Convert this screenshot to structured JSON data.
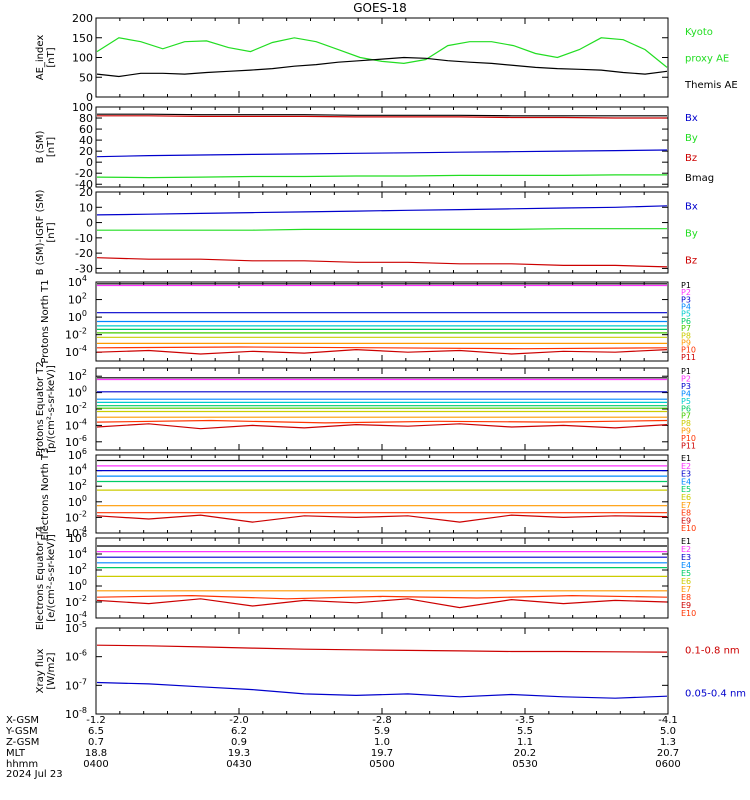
{
  "title": "GOES-18",
  "colors": {
    "black": "#000000",
    "green": "#22dd22",
    "blue": "#0000cc",
    "red": "#cc0000",
    "p": [
      "#000000",
      "#ff33ff",
      "#0000cc",
      "#0088ff",
      "#00cccc",
      "#00cc66",
      "#44cc00",
      "#cccc00",
      "#ff9900",
      "#ff3300",
      "#cc0000"
    ]
  },
  "chart_data": [
    {
      "type": "line",
      "ylabel": "AE_index [nT]",
      "ylim": [
        0,
        200
      ],
      "yticks": [
        "0",
        "50",
        "100",
        "150",
        "200"
      ],
      "legend": [
        "Kyoto",
        "proxy AE",
        "Themis AE"
      ],
      "series": [
        {
          "name": "Kyoto proxy AE",
          "color": "green",
          "values": [
            115,
            150,
            140,
            122,
            140,
            142,
            125,
            115,
            138,
            150,
            140,
            120,
            100,
            90,
            85,
            95,
            130,
            140,
            140,
            130,
            110,
            100,
            120,
            150,
            145,
            120,
            75
          ]
        },
        {
          "name": "Themis AE",
          "color": "black",
          "values": [
            58,
            52,
            60,
            60,
            58,
            62,
            65,
            68,
            72,
            78,
            82,
            88,
            92,
            96,
            100,
            98,
            92,
            88,
            85,
            80,
            75,
            72,
            70,
            68,
            62,
            58,
            65
          ]
        }
      ]
    },
    {
      "type": "line",
      "ylabel": "B (SM) [nT]",
      "ylim": [
        -45,
        100
      ],
      "yticks": [
        "-40",
        "-20",
        "0",
        "20",
        "40",
        "60",
        "80",
        "100"
      ],
      "legend": [
        "Bx",
        "By",
        "Bz",
        "Bmag"
      ],
      "series": [
        {
          "name": "Bx",
          "color": "blue",
          "values": [
            10,
            12,
            13,
            14,
            15,
            16,
            17,
            18,
            19,
            20,
            21,
            22
          ]
        },
        {
          "name": "By",
          "color": "green",
          "values": [
            -27,
            -28,
            -27,
            -26,
            -26,
            -25,
            -25,
            -24,
            -24,
            -24,
            -23,
            -23
          ]
        },
        {
          "name": "Bz",
          "color": "red",
          "values": [
            84,
            84,
            83,
            83,
            83,
            82,
            82,
            82,
            81,
            81,
            80,
            80
          ]
        },
        {
          "name": "Bmag",
          "color": "black",
          "values": [
            87,
            87,
            86,
            86,
            86,
            85,
            85,
            85,
            84,
            84,
            84,
            84
          ]
        }
      ]
    },
    {
      "type": "line",
      "ylabel": "B (SM)-IGRF (SM) [nT]",
      "ylim": [
        -33,
        20
      ],
      "yticks": [
        "-30",
        "-20",
        "-10",
        "0",
        "10",
        "20"
      ],
      "legend": [
        "Bx",
        "By",
        "Bz"
      ],
      "series": [
        {
          "name": "Bx",
          "color": "blue",
          "values": [
            5,
            5.5,
            6,
            6.5,
            7,
            7.5,
            8,
            8.5,
            9,
            9.5,
            10,
            11
          ]
        },
        {
          "name": "By",
          "color": "green",
          "values": [
            -5,
            -5,
            -5,
            -5,
            -4.5,
            -4.5,
            -4.5,
            -4.5,
            -4.5,
            -4,
            -4,
            -4
          ]
        },
        {
          "name": "Bz",
          "color": "red",
          "values": [
            -23,
            -24,
            -24,
            -25,
            -25,
            -26,
            -26,
            -27,
            -27,
            -28,
            -28,
            -29
          ]
        }
      ]
    },
    {
      "type": "line",
      "ylabel": "Protons North T1",
      "ylim": [
        -5,
        4
      ],
      "log": true,
      "yticks": [
        "10^-4",
        "10^-2",
        "10^0",
        "10^2",
        "10^4"
      ],
      "legend": [
        "P1",
        "P2",
        "P3",
        "P4",
        "P5",
        "P6",
        "P7",
        "P8",
        "P9",
        "P10",
        "P11"
      ],
      "series": [
        {
          "name": "P1",
          "color": 0,
          "values": [
            3.8
          ]
        },
        {
          "name": "P2",
          "color": 1,
          "values": [
            3.6
          ]
        },
        {
          "name": "P3",
          "color": 2,
          "values": [
            0.5
          ]
        },
        {
          "name": "P4",
          "color": 3,
          "values": [
            -0.5
          ]
        },
        {
          "name": "P5",
          "color": 4,
          "values": [
            -1.0
          ]
        },
        {
          "name": "P6",
          "color": 5,
          "values": [
            -1.4
          ]
        },
        {
          "name": "P7",
          "color": 6,
          "values": [
            -1.8
          ]
        },
        {
          "name": "P8",
          "color": 7,
          "values": [
            -2.3
          ]
        },
        {
          "name": "P9",
          "color": 8,
          "values": [
            -3.0
          ]
        },
        {
          "name": "P10",
          "color": 9,
          "values": [
            -3.5,
            -3.4,
            -3.5,
            -3.6,
            -3.5
          ]
        },
        {
          "name": "P11",
          "color": 10,
          "values": [
            -4.0,
            -3.8,
            -4.2,
            -3.9,
            -4.1,
            -3.7,
            -4.0,
            -3.8,
            -4.2,
            -3.9,
            -4.0,
            -3.7
          ]
        }
      ]
    },
    {
      "type": "line",
      "ylabel": "Protons Equator T2 [p/(cm²-s-sr-keV)]",
      "ylim": [
        -7,
        3
      ],
      "log": true,
      "yticks": [
        "10^-6",
        "10^-4",
        "10^-2",
        "10^0",
        "10^2"
      ],
      "legend": [
        "P1",
        "P2",
        "P3",
        "P4",
        "P5",
        "P6",
        "P7",
        "P8",
        "P9",
        "P10",
        "P11"
      ],
      "series": [
        {
          "name": "P1",
          "color": 0,
          "values": [
            1.8
          ]
        },
        {
          "name": "P2",
          "color": 1,
          "values": [
            1.6
          ]
        },
        {
          "name": "P3",
          "color": 2,
          "values": [
            0.1
          ]
        },
        {
          "name": "P4",
          "color": 3,
          "values": [
            -0.8
          ]
        },
        {
          "name": "P5",
          "color": 4,
          "values": [
            -1.2
          ]
        },
        {
          "name": "P6",
          "color": 5,
          "values": [
            -1.6
          ]
        },
        {
          "name": "P7",
          "color": 6,
          "values": [
            -1.9
          ]
        },
        {
          "name": "P8",
          "color": 7,
          "values": [
            -2.3
          ]
        },
        {
          "name": "P9",
          "color": 8,
          "values": [
            -3.0
          ]
        },
        {
          "name": "P10",
          "color": 9,
          "values": [
            -3.6,
            -3.4,
            -3.7,
            -3.5,
            -3.6,
            -3.4
          ]
        },
        {
          "name": "P11",
          "color": 10,
          "values": [
            -4.2,
            -3.8,
            -4.4,
            -4.0,
            -4.3,
            -3.9,
            -4.1,
            -3.8,
            -4.2,
            -4.0,
            -4.3,
            -3.9
          ]
        }
      ]
    },
    {
      "type": "line",
      "ylabel": "Electrons North T3",
      "ylim": [
        -4,
        6
      ],
      "log": true,
      "yticks": [
        "10^-4",
        "10^-2",
        "10^0",
        "10^2",
        "10^4",
        "10^6"
      ],
      "legend": [
        "E1",
        "E2",
        "E3",
        "E4",
        "E5",
        "E6",
        "E7",
        "E8",
        "E9",
        "E10"
      ],
      "series": [
        {
          "name": "E1",
          "color": 0,
          "values": [
            5.3
          ]
        },
        {
          "name": "E2",
          "color": 1,
          "values": [
            4.6
          ]
        },
        {
          "name": "E3",
          "color": 2,
          "values": [
            4.0
          ]
        },
        {
          "name": "E4",
          "color": 3,
          "values": [
            3.3
          ]
        },
        {
          "name": "E5",
          "color": 5,
          "values": [
            2.6
          ]
        },
        {
          "name": "E6",
          "color": 7,
          "values": [
            1.5
          ]
        },
        {
          "name": "E7",
          "color": 8,
          "values": [
            -0.5
          ]
        },
        {
          "name": "E8",
          "color": 9,
          "values": [
            -1.4
          ]
        },
        {
          "name": "E9",
          "color": 10,
          "values": [
            -1.8,
            -2.2,
            -1.7,
            -2.6,
            -1.8,
            -2.0,
            -1.8,
            -2.6,
            -1.7,
            -2.0,
            -1.8,
            -1.9
          ]
        }
      ]
    },
    {
      "type": "line",
      "ylabel": "Electrons Equator T4 [e/(cm²-s-sr-keV)]",
      "ylim": [
        -4,
        6
      ],
      "log": true,
      "yticks": [
        "10^-4",
        "10^-2",
        "10^0",
        "10^2",
        "10^4",
        "10^6"
      ],
      "legend": [
        "E1",
        "E2",
        "E3",
        "E4",
        "E5",
        "E6",
        "E7",
        "E8",
        "E9",
        "E10"
      ],
      "series": [
        {
          "name": "E1",
          "color": 0,
          "values": [
            5.0
          ]
        },
        {
          "name": "E2",
          "color": 1,
          "values": [
            4.3
          ]
        },
        {
          "name": "E3",
          "color": 2,
          "values": [
            3.6
          ]
        },
        {
          "name": "E4",
          "color": 3,
          "values": [
            2.9
          ]
        },
        {
          "name": "E5",
          "color": 5,
          "values": [
            2.3
          ]
        },
        {
          "name": "E6",
          "color": 7,
          "values": [
            1.2
          ]
        },
        {
          "name": "E7",
          "color": 8,
          "values": [
            -0.6
          ]
        },
        {
          "name": "E8",
          "color": 9,
          "values": [
            -1.4,
            -1.2,
            -1.6,
            -1.3,
            -1.5,
            -1.2,
            -1.4
          ]
        },
        {
          "name": "E9",
          "color": 10,
          "values": [
            -1.8,
            -2.2,
            -1.6,
            -2.5,
            -1.8,
            -2.1,
            -1.6,
            -2.7,
            -1.7,
            -2.2,
            -1.8,
            -2.0
          ]
        }
      ]
    },
    {
      "type": "line",
      "ylabel": "Xray flux [W/m2]",
      "ylim": [
        -8,
        -5
      ],
      "log": true,
      "yticks": [
        "10^-8",
        "10^-7",
        "10^-6",
        "10^-5"
      ],
      "legend": [
        "0.1-0.8 nm",
        "0.05-0.4 nm"
      ],
      "series": [
        {
          "name": "0.1-0.8 nm",
          "color": "red",
          "values": [
            -5.6,
            -5.62,
            -5.66,
            -5.7,
            -5.74,
            -5.76,
            -5.78,
            -5.8,
            -5.82,
            -5.82,
            -5.83,
            -5.84
          ]
        },
        {
          "name": "0.05-0.4 nm",
          "color": "blue",
          "values": [
            -6.9,
            -6.95,
            -7.05,
            -7.15,
            -7.3,
            -7.35,
            -7.3,
            -7.4,
            -7.32,
            -7.4,
            -7.45,
            -7.38
          ]
        }
      ]
    }
  ],
  "xaxis": {
    "rows": [
      "X-GSM",
      "Y-GSM",
      "Z-GSM",
      "MLT",
      "hhmm",
      "2024 Jul 23"
    ],
    "columns": [
      [
        "-1.2",
        "6.5",
        "0.7",
        "18.8",
        "0400"
      ],
      [
        "-2.0",
        "6.2",
        "0.9",
        "19.3",
        "0430"
      ],
      [
        "-2.8",
        "5.9",
        "1.0",
        "19.7",
        "0500"
      ],
      [
        "-3.5",
        "5.5",
        "1.1",
        "20.2",
        "0530"
      ],
      [
        "-4.1",
        "5.0",
        "1.3",
        "20.7",
        "0600"
      ]
    ]
  }
}
